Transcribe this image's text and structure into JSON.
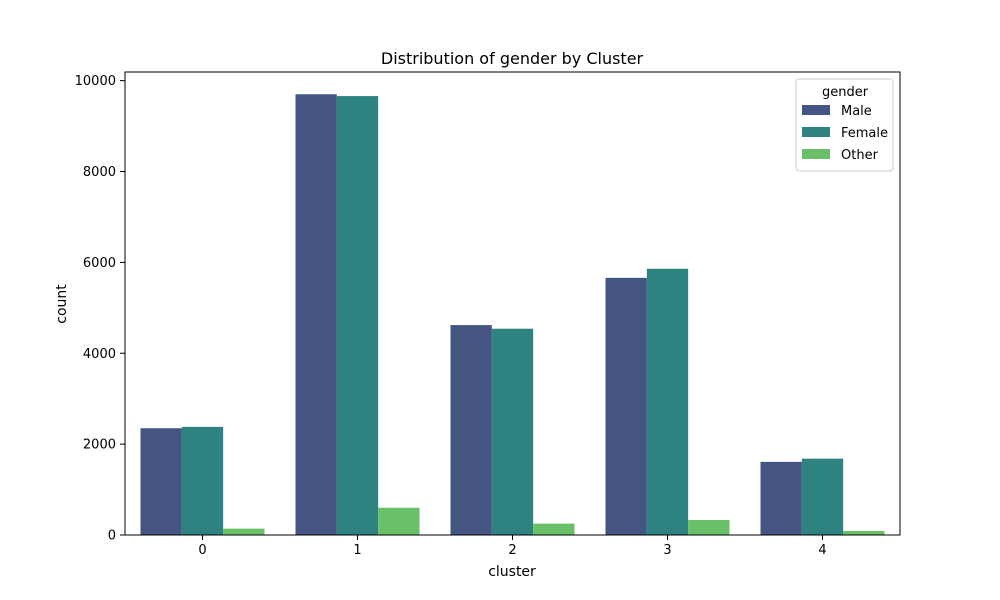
{
  "chart_data": {
    "type": "bar",
    "title": "Distribution of gender by Cluster",
    "xlabel": "cluster",
    "ylabel": "count",
    "categories": [
      "0",
      "1",
      "2",
      "3",
      "4"
    ],
    "series": [
      {
        "name": "Male",
        "color": "#435580",
        "values": [
          2350,
          9700,
          4620,
          5660,
          1610
        ]
      },
      {
        "name": "Female",
        "color": "#2e8280",
        "values": [
          2380,
          9660,
          4540,
          5860,
          1680
        ]
      },
      {
        "name": "Other",
        "color": "#6abf69",
        "values": [
          140,
          600,
          250,
          330,
          90
        ]
      }
    ],
    "ylim": [
      0,
      10190
    ],
    "yticks": [
      0,
      2000,
      4000,
      6000,
      8000,
      10000
    ],
    "legend": {
      "title": "gender",
      "position": "top-right"
    },
    "grid": false
  }
}
